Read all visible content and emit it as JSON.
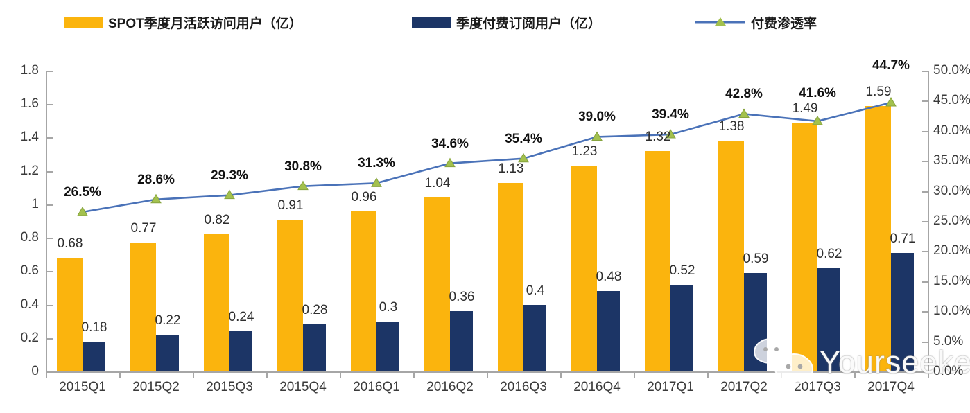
{
  "legend": [
    {
      "label": "SPOT季度月活跃访问用户（亿）",
      "swatch": "bar",
      "color": "#FBB40D"
    },
    {
      "label": "季度付费订阅用户（亿）",
      "swatch": "bar",
      "color": "#1C3566"
    },
    {
      "label": "付费渗透率",
      "swatch": "line",
      "color": "#4A72B8",
      "marker_color": "#A3C14E"
    }
  ],
  "chart_data": {
    "type": "bar+line combo",
    "categories": [
      "2015Q1",
      "2015Q2",
      "2015Q3",
      "2015Q4",
      "2016Q1",
      "2016Q2",
      "2016Q3",
      "2016Q4",
      "2017Q1",
      "2017Q2",
      "2017Q3",
      "2017Q4"
    ],
    "series": [
      {
        "name": "SPOT季度月活跃访问用户（亿）",
        "type": "bar",
        "axis": "left",
        "color": "#FBB40D",
        "values": [
          0.68,
          0.77,
          0.82,
          0.91,
          0.96,
          1.04,
          1.13,
          1.23,
          1.32,
          1.38,
          1.49,
          1.59
        ],
        "labels": [
          "0.68",
          "0.77",
          "0.82",
          "0.91",
          "0.96",
          "1.04",
          "1.13",
          "1.23",
          "1.32",
          "1.38",
          "1.49",
          "1.59"
        ]
      },
      {
        "name": "季度付费订阅用户（亿）",
        "type": "bar",
        "axis": "left",
        "color": "#1C3566",
        "values": [
          0.18,
          0.22,
          0.24,
          0.28,
          0.3,
          0.36,
          0.4,
          0.48,
          0.52,
          0.59,
          0.62,
          0.71
        ],
        "labels": [
          "0.18",
          "0.22",
          "0.24",
          "0.28",
          "0.3",
          "0.36",
          "0.4",
          "0.48",
          "0.52",
          "0.59",
          "0.62",
          "0.71"
        ]
      },
      {
        "name": "付费渗透率",
        "type": "line",
        "axis": "right",
        "color": "#4A72B8",
        "marker": "triangle",
        "marker_color": "#A3C14E",
        "values": [
          26.5,
          28.6,
          29.3,
          30.8,
          31.3,
          34.6,
          35.4,
          39.0,
          39.4,
          42.8,
          41.6,
          44.7
        ],
        "labels": [
          "26.5%",
          "28.6%",
          "29.3%",
          "30.8%",
          "31.3%",
          "34.6%",
          "35.4%",
          "39.0%",
          "39.4%",
          "42.8%",
          "41.6%",
          "44.7%"
        ]
      }
    ],
    "left_axis": {
      "min": 0,
      "max": 1.8,
      "step": 0.2,
      "ticks": [
        "1.8",
        "1.6",
        "1.4",
        "1.2",
        "1",
        "0.8",
        "0.6",
        "0.4",
        "0.2",
        "0"
      ]
    },
    "right_axis": {
      "min": 0,
      "max": 50,
      "step": 5,
      "ticks": [
        "50.0%",
        "45.0%",
        "40.0%",
        "35.0%",
        "30.0%",
        "25.0%",
        "20.0%",
        "15.0%",
        "10.0%",
        "5.0%",
        "0.0%"
      ]
    },
    "grid": false,
    "legend_position": "top"
  },
  "watermark": {
    "text": "Yourseeker",
    "icon": "wechat-icon"
  }
}
